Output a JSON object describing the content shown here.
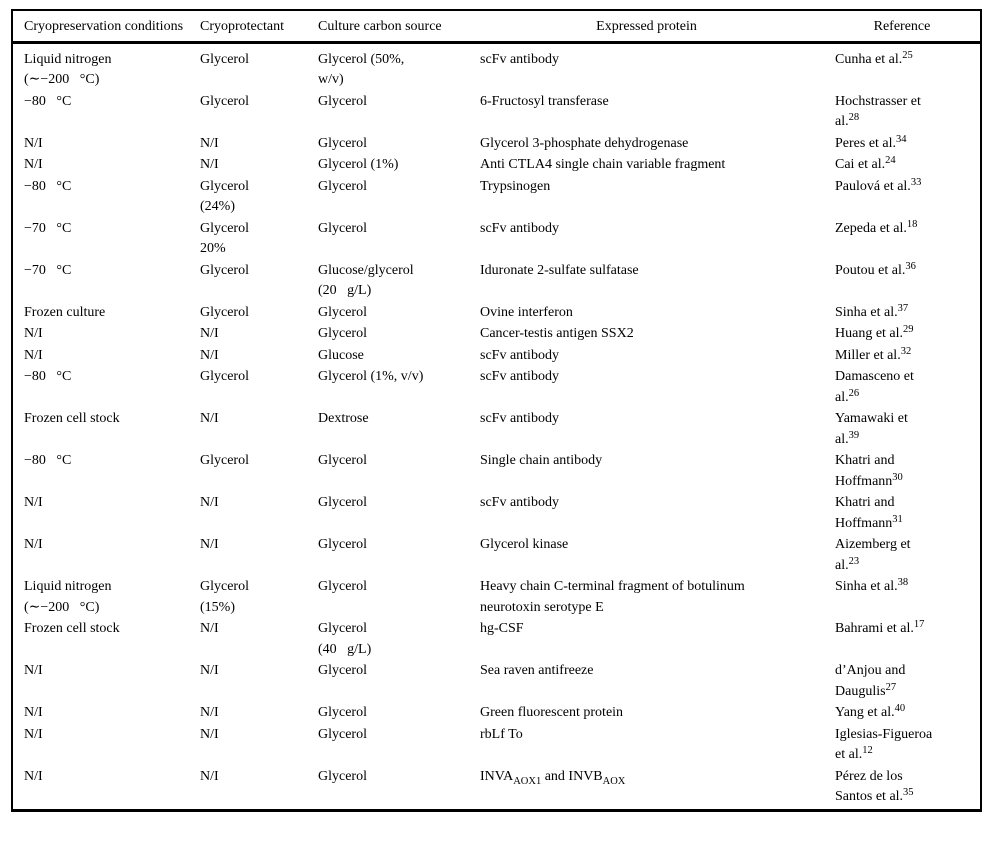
{
  "colors": {
    "text": "#000000",
    "background": "#ffffff",
    "rule": "#000000"
  },
  "table": {
    "name": "cryopreservation-literature-table",
    "columns": [
      {
        "key": "cryopreservation-conditions",
        "label": "Cryopreservation conditions",
        "align": "left"
      },
      {
        "key": "cryoprotectant",
        "label": "Cryoprotectant",
        "align": "left"
      },
      {
        "key": "culture-carbon-source",
        "label": "Culture carbon source",
        "align": "left"
      },
      {
        "key": "expressed-protein",
        "label": "Expressed protein",
        "align": "center"
      },
      {
        "key": "reference",
        "label": "Reference",
        "align": "center"
      }
    ],
    "rows": [
      {
        "cells": [
          [
            {
              "t": "Liquid nitrogen\n(∼−200   °C)"
            }
          ],
          [
            {
              "t": "Glycerol"
            }
          ],
          [
            {
              "t": "Glycerol (50%,\nw/v)"
            }
          ],
          [
            {
              "t": "scFv antibody"
            }
          ],
          [
            {
              "t": "Cunha et al."
            },
            {
              "sup": "25"
            }
          ]
        ]
      },
      {
        "cells": [
          [
            {
              "t": "−80   °C"
            }
          ],
          [
            {
              "t": "Glycerol"
            }
          ],
          [
            {
              "t": "Glycerol"
            }
          ],
          [
            {
              "t": "6-Fructosyl transferase"
            }
          ],
          [
            {
              "t": "Hochstrasser et\nal."
            },
            {
              "sup": "28"
            }
          ]
        ]
      },
      {
        "cells": [
          [
            {
              "t": "N/I"
            }
          ],
          [
            {
              "t": "N/I"
            }
          ],
          [
            {
              "t": "Glycerol"
            }
          ],
          [
            {
              "t": "Glycerol 3-phosphate dehydrogenase"
            }
          ],
          [
            {
              "t": "Peres et al."
            },
            {
              "sup": "34"
            }
          ]
        ]
      },
      {
        "cells": [
          [
            {
              "t": "N/I"
            }
          ],
          [
            {
              "t": "N/I"
            }
          ],
          [
            {
              "t": "Glycerol (1%)"
            }
          ],
          [
            {
              "t": "Anti CTLA4 single chain variable fragment"
            }
          ],
          [
            {
              "t": "Cai et al."
            },
            {
              "sup": "24"
            }
          ]
        ]
      },
      {
        "cells": [
          [
            {
              "t": "−80   °C"
            }
          ],
          [
            {
              "t": "Glycerol\n(24%)"
            }
          ],
          [
            {
              "t": "Glycerol"
            }
          ],
          [
            {
              "t": "Trypsinogen"
            }
          ],
          [
            {
              "t": "Paulová et al."
            },
            {
              "sup": "33"
            }
          ]
        ]
      },
      {
        "cells": [
          [
            {
              "t": "−70   °C"
            }
          ],
          [
            {
              "t": "Glycerol\n20%"
            }
          ],
          [
            {
              "t": "Glycerol"
            }
          ],
          [
            {
              "t": "scFv antibody"
            }
          ],
          [
            {
              "t": "Zepeda et al."
            },
            {
              "sup": "18"
            }
          ]
        ]
      },
      {
        "cells": [
          [
            {
              "t": "−70   °C"
            }
          ],
          [
            {
              "t": "Glycerol"
            }
          ],
          [
            {
              "t": "Glucose/glycerol\n(20   g/L)"
            }
          ],
          [
            {
              "t": "Iduronate 2-sulfate sulfatase"
            }
          ],
          [
            {
              "t": "Poutou et al."
            },
            {
              "sup": "36"
            }
          ]
        ]
      },
      {
        "cells": [
          [
            {
              "t": "Frozen culture"
            }
          ],
          [
            {
              "t": "Glycerol"
            }
          ],
          [
            {
              "t": "Glycerol"
            }
          ],
          [
            {
              "t": "Ovine interferon"
            }
          ],
          [
            {
              "t": "Sinha et al."
            },
            {
              "sup": "37"
            }
          ]
        ]
      },
      {
        "cells": [
          [
            {
              "t": "N/I"
            }
          ],
          [
            {
              "t": "N/I"
            }
          ],
          [
            {
              "t": "Glycerol"
            }
          ],
          [
            {
              "t": "Cancer-testis antigen SSX2"
            }
          ],
          [
            {
              "t": "Huang et al."
            },
            {
              "sup": "29"
            }
          ]
        ]
      },
      {
        "cells": [
          [
            {
              "t": "N/I"
            }
          ],
          [
            {
              "t": "N/I"
            }
          ],
          [
            {
              "t": "Glucose"
            }
          ],
          [
            {
              "t": "scFv antibody"
            }
          ],
          [
            {
              "t": "Miller et al."
            },
            {
              "sup": "32"
            }
          ]
        ]
      },
      {
        "cells": [
          [
            {
              "t": "−80   °C"
            }
          ],
          [
            {
              "t": "Glycerol"
            }
          ],
          [
            {
              "t": "Glycerol (1%, v/v)"
            }
          ],
          [
            {
              "t": "scFv antibody"
            }
          ],
          [
            {
              "t": "Damasceno et\nal."
            },
            {
              "sup": "26"
            }
          ]
        ]
      },
      {
        "cells": [
          [
            {
              "t": "Frozen cell stock"
            }
          ],
          [
            {
              "t": "N/I"
            }
          ],
          [
            {
              "t": "Dextrose"
            }
          ],
          [
            {
              "t": "scFv antibody"
            }
          ],
          [
            {
              "t": "Yamawaki et\nal."
            },
            {
              "sup": "39"
            }
          ]
        ]
      },
      {
        "cells": [
          [
            {
              "t": "−80   °C"
            }
          ],
          [
            {
              "t": "Glycerol"
            }
          ],
          [
            {
              "t": "Glycerol"
            }
          ],
          [
            {
              "t": "Single chain antibody"
            }
          ],
          [
            {
              "t": "Khatri and\nHoffmann"
            },
            {
              "sup": "30"
            }
          ]
        ]
      },
      {
        "cells": [
          [
            {
              "t": "N/I"
            }
          ],
          [
            {
              "t": "N/I"
            }
          ],
          [
            {
              "t": "Glycerol"
            }
          ],
          [
            {
              "t": "scFv antibody"
            }
          ],
          [
            {
              "t": "Khatri and\nHoffmann"
            },
            {
              "sup": "31"
            }
          ]
        ]
      },
      {
        "cells": [
          [
            {
              "t": "N/I"
            }
          ],
          [
            {
              "t": "N/I"
            }
          ],
          [
            {
              "t": "Glycerol"
            }
          ],
          [
            {
              "t": "Glycerol kinase"
            }
          ],
          [
            {
              "t": "Aizemberg et\nal."
            },
            {
              "sup": "23"
            }
          ]
        ]
      },
      {
        "cells": [
          [
            {
              "t": "Liquid nitrogen\n(∼−200   °C)"
            }
          ],
          [
            {
              "t": "Glycerol\n(15%)"
            }
          ],
          [
            {
              "t": "Glycerol"
            }
          ],
          [
            {
              "t": "Heavy chain C-terminal fragment of botulinum\nneurotoxin serotype E"
            }
          ],
          [
            {
              "t": "Sinha et al."
            },
            {
              "sup": "38"
            }
          ]
        ]
      },
      {
        "cells": [
          [
            {
              "t": "Frozen cell stock"
            }
          ],
          [
            {
              "t": "N/I"
            }
          ],
          [
            {
              "t": "Glycerol\n(40   g/L)"
            }
          ],
          [
            {
              "t": "hg-CSF"
            }
          ],
          [
            {
              "t": "Bahrami et al."
            },
            {
              "sup": "17"
            }
          ]
        ]
      },
      {
        "cells": [
          [
            {
              "t": "N/I"
            }
          ],
          [
            {
              "t": "N/I"
            }
          ],
          [
            {
              "t": "Glycerol"
            }
          ],
          [
            {
              "t": "Sea raven antifreeze"
            }
          ],
          [
            {
              "t": "d’Anjou and\nDaugulis"
            },
            {
              "sup": "27"
            }
          ]
        ]
      },
      {
        "cells": [
          [
            {
              "t": "N/I"
            }
          ],
          [
            {
              "t": "N/I"
            }
          ],
          [
            {
              "t": "Glycerol"
            }
          ],
          [
            {
              "t": "Green fluorescent protein"
            }
          ],
          [
            {
              "t": "Yang et al."
            },
            {
              "sup": "40"
            }
          ]
        ]
      },
      {
        "cells": [
          [
            {
              "t": "N/I"
            }
          ],
          [
            {
              "t": "N/I"
            }
          ],
          [
            {
              "t": "Glycerol"
            }
          ],
          [
            {
              "t": "rbLf To"
            }
          ],
          [
            {
              "t": "Iglesias-Figueroa\net al."
            },
            {
              "sup": "12"
            }
          ]
        ]
      },
      {
        "cells": [
          [
            {
              "t": "N/I"
            }
          ],
          [
            {
              "t": "N/I"
            }
          ],
          [
            {
              "t": "Glycerol"
            }
          ],
          [
            {
              "t": "INVA"
            },
            {
              "sub": "AOX1"
            },
            {
              "t": " and INVB"
            },
            {
              "sub": "AOX"
            }
          ],
          [
            {
              "t": "Pérez de los\nSantos et al."
            },
            {
              "sup": "35"
            }
          ]
        ]
      }
    ]
  }
}
